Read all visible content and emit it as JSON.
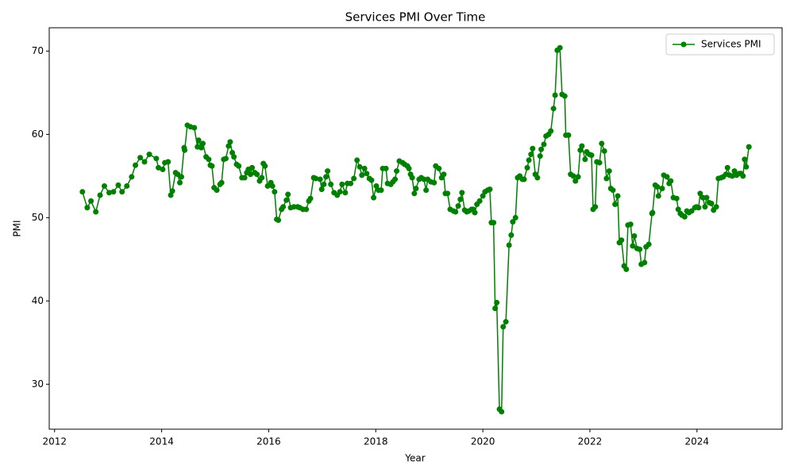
{
  "chart_data": {
    "type": "line",
    "title": "Services PMI Over Time",
    "x_label": "Year",
    "y_label": "PMI",
    "x": [
      2012.52,
      2012.61,
      2012.68,
      2012.77,
      2012.85,
      2012.93,
      2013.02,
      2013.1,
      2013.19,
      2013.26,
      2013.35,
      2013.44,
      2013.51,
      2013.6,
      2013.68,
      2013.77,
      2013.9,
      2013.94,
      2014.02,
      2014.06,
      2014.12,
      2014.17,
      2014.2,
      2014.26,
      2014.3,
      2014.34,
      2014.37,
      2014.42,
      2014.43,
      2014.48,
      2014.54,
      2014.61,
      2014.67,
      2014.69,
      2014.74,
      2014.77,
      2014.83,
      2014.88,
      2014.91,
      2014.94,
      2014.98,
      2015.03,
      2015.09,
      2015.12,
      2015.16,
      2015.2,
      2015.25,
      2015.28,
      2015.32,
      2015.35,
      2015.4,
      2015.44,
      2015.5,
      2015.55,
      2015.59,
      2015.62,
      2015.66,
      2015.69,
      2015.74,
      2015.78,
      2015.83,
      2015.87,
      2015.9,
      2015.93,
      2015.98,
      2016.04,
      2016.07,
      2016.11,
      2016.15,
      2016.18,
      2016.24,
      2016.27,
      2016.33,
      2016.36,
      2016.41,
      2016.47,
      2016.54,
      2016.58,
      2016.64,
      2016.7,
      2016.75,
      2016.78,
      2016.84,
      2016.88,
      2016.96,
      2016.99,
      2017.03,
      2017.07,
      2017.1,
      2017.16,
      2017.22,
      2017.28,
      2017.33,
      2017.37,
      2017.43,
      2017.47,
      2017.53,
      2017.59,
      2017.65,
      2017.7,
      2017.74,
      2017.79,
      2017.83,
      2017.88,
      2017.92,
      2017.96,
      2018.01,
      2018.05,
      2018.1,
      2018.13,
      2018.19,
      2018.22,
      2018.28,
      2018.32,
      2018.36,
      2018.39,
      2018.44,
      2018.5,
      2018.54,
      2018.59,
      2018.62,
      2018.65,
      2018.68,
      2018.72,
      2018.75,
      2018.81,
      2018.85,
      2018.9,
      2018.94,
      2018.97,
      2019.03,
      2019.09,
      2019.12,
      2019.18,
      2019.23,
      2019.27,
      2019.3,
      2019.34,
      2019.39,
      2019.45,
      2019.49,
      2019.54,
      2019.58,
      2019.61,
      2019.66,
      2019.7,
      2019.74,
      2019.79,
      2019.82,
      2019.85,
      2019.89,
      2019.94,
      2020.0,
      2020.04,
      2020.09,
      2020.13,
      2020.16,
      2020.2,
      2020.23,
      2020.26,
      2020.31,
      2020.35,
      2020.38,
      2020.43,
      2020.49,
      2020.53,
      2020.56,
      2020.61,
      2020.65,
      2020.69,
      2020.74,
      2020.77,
      2020.83,
      2020.86,
      2020.9,
      2020.93,
      2020.98,
      2021.02,
      2021.07,
      2021.09,
      2021.14,
      2021.18,
      2021.23,
      2021.27,
      2021.32,
      2021.35,
      2021.39,
      2021.44,
      2021.48,
      2021.53,
      2021.55,
      2021.6,
      2021.64,
      2021.69,
      2021.73,
      2021.78,
      2021.82,
      2021.85,
      2021.91,
      2021.94,
      2021.99,
      2022.03,
      2022.06,
      2022.1,
      2022.13,
      2022.18,
      2022.22,
      2022.27,
      2022.31,
      2022.36,
      2022.39,
      2022.43,
      2022.47,
      2022.52,
      2022.55,
      2022.59,
      2022.64,
      2022.68,
      2022.71,
      2022.76,
      2022.8,
      2022.83,
      2022.88,
      2022.93,
      2022.96,
      2023.02,
      2023.05,
      2023.1,
      2023.16,
      2023.17,
      2023.22,
      2023.26,
      2023.28,
      2023.35,
      2023.38,
      2023.44,
      2023.48,
      2023.51,
      2023.56,
      2023.62,
      2023.65,
      2023.69,
      2023.72,
      2023.77,
      2023.81,
      2023.85,
      2023.9,
      2023.96,
      2023.99,
      2024.03,
      2024.06,
      2024.11,
      2024.15,
      2024.18,
      2024.23,
      2024.27,
      2024.31,
      2024.36,
      2024.4,
      2024.45,
      2024.49,
      2024.54,
      2024.57,
      2024.61,
      2024.66,
      2024.7,
      2024.74,
      2024.79,
      2024.82,
      2024.86,
      2024.89,
      2024.92,
      2024.97
    ],
    "series": [
      {
        "name": "Services PMI",
        "color": "#008000",
        "values": [
          53.1,
          51.2,
          52.0,
          50.7,
          52.7,
          53.8,
          53.0,
          53.1,
          53.9,
          53.1,
          53.8,
          54.9,
          56.3,
          57.2,
          56.7,
          57.6,
          57.1,
          56.0,
          55.8,
          56.6,
          56.7,
          52.7,
          53.2,
          55.4,
          55.2,
          54.2,
          54.9,
          58.4,
          58.1,
          61.1,
          60.9,
          60.8,
          58.5,
          59.3,
          58.4,
          58.9,
          57.3,
          57.0,
          56.3,
          56.2,
          53.6,
          53.3,
          54.0,
          54.2,
          57.0,
          57.1,
          58.6,
          59.1,
          57.8,
          57.3,
          56.4,
          56.2,
          54.8,
          54.8,
          55.4,
          55.8,
          55.2,
          56.0,
          55.4,
          55.2,
          54.4,
          54.8,
          56.5,
          56.2,
          53.8,
          54.2,
          53.8,
          53.1,
          49.8,
          49.7,
          51.0,
          51.3,
          52.1,
          52.8,
          51.2,
          51.3,
          51.3,
          51.2,
          51.0,
          51.0,
          52.0,
          52.3,
          54.8,
          54.7,
          54.6,
          53.4,
          54.0,
          54.9,
          55.6,
          54.0,
          53.0,
          52.7,
          53.1,
          54.0,
          53.0,
          54.1,
          54.1,
          54.7,
          56.9,
          56.1,
          55.1,
          55.9,
          55.3,
          54.7,
          54.5,
          52.4,
          53.8,
          53.3,
          53.3,
          55.9,
          55.9,
          54.1,
          54.0,
          54.3,
          54.6,
          55.6,
          56.8,
          56.6,
          56.4,
          56.2,
          55.9,
          55.2,
          54.8,
          52.9,
          53.5,
          54.6,
          54.8,
          54.6,
          53.3,
          54.6,
          54.3,
          54.2,
          56.2,
          55.9,
          54.8,
          55.2,
          52.9,
          52.9,
          51.0,
          50.8,
          50.7,
          51.4,
          52.2,
          53.0,
          50.9,
          50.7,
          50.8,
          51.0,
          51.0,
          50.6,
          51.6,
          52.0,
          52.6,
          53.1,
          53.3,
          53.4,
          49.4,
          49.4,
          39.1,
          39.8,
          27.0,
          26.7,
          36.9,
          37.5,
          46.7,
          47.9,
          49.5,
          50.0,
          54.8,
          55.0,
          54.6,
          54.6,
          56.0,
          56.9,
          57.6,
          58.3,
          55.2,
          54.8,
          57.4,
          58.2,
          58.8,
          59.8,
          60.0,
          60.4,
          63.1,
          64.7,
          70.1,
          70.4,
          64.8,
          64.6,
          59.9,
          59.9,
          55.2,
          55.0,
          54.4,
          54.9,
          58.1,
          58.6,
          57.0,
          57.9,
          57.6,
          57.5,
          51.0,
          51.3,
          56.7,
          56.6,
          58.9,
          58.0,
          54.7,
          55.6,
          53.5,
          53.3,
          51.6,
          52.6,
          47.0,
          47.3,
          44.2,
          43.8,
          49.1,
          49.2,
          46.6,
          47.8,
          46.3,
          46.2,
          44.4,
          44.6,
          46.5,
          46.8,
          50.5,
          50.6,
          53.9,
          53.7,
          52.6,
          53.5,
          55.1,
          54.9,
          54.1,
          54.4,
          52.4,
          52.3,
          51.0,
          50.5,
          50.3,
          50.1,
          50.8,
          50.6,
          50.8,
          51.2,
          51.3,
          51.2,
          52.9,
          52.4,
          51.3,
          52.4,
          51.8,
          51.7,
          50.9,
          51.3,
          54.7,
          54.8,
          54.9,
          55.2,
          56.0,
          55.1,
          55.0,
          55.6,
          55.1,
          55.3,
          55.3,
          55.0,
          57.0,
          56.1,
          58.5
        ]
      }
    ],
    "xlim": [
      2011.9,
      2025.59
    ],
    "xticks": [
      2012,
      2014,
      2016,
      2018,
      2020,
      2022,
      2024
    ],
    "ylim": [
      24.6,
      72.8
    ],
    "yticks": [
      30,
      40,
      50,
      60,
      70
    ],
    "grid": false,
    "legend": "upper right"
  }
}
